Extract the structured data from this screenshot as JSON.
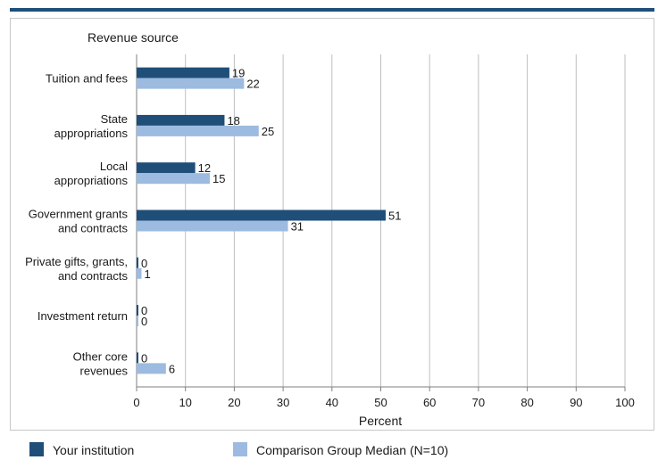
{
  "colors": {
    "top_rule": "#1f4e79",
    "series_1": "#1f4e79",
    "series_2": "#9dbbe0",
    "grid": "#bfbfbf",
    "frame": "#c8c8c8",
    "text": "#1a1a1a"
  },
  "legend": {
    "items": [
      {
        "label": "Your institution",
        "color": "#1f4e79"
      },
      {
        "label": "Comparison Group Median (N=10)",
        "color": "#9dbbe0"
      }
    ]
  },
  "chart_data": {
    "type": "bar",
    "orientation": "horizontal",
    "category_axis_title": "Revenue source",
    "value_axis_title": "Percent",
    "xlim": [
      0,
      100
    ],
    "x_ticks": [
      "0",
      "10",
      "20",
      "30",
      "40",
      "50",
      "60",
      "70",
      "80",
      "90",
      "100"
    ],
    "grid": true,
    "legend_position": "bottom",
    "categories": [
      [
        "Tuition and fees"
      ],
      [
        "State",
        "appropriations"
      ],
      [
        "Local",
        "appropriations"
      ],
      [
        "Government grants",
        "and contracts"
      ],
      [
        "Private gifts, grants,",
        "and contracts"
      ],
      [
        "Investment return"
      ],
      [
        "Other core",
        "revenues"
      ]
    ],
    "series": [
      {
        "name": "Your institution",
        "color": "#1f4e79",
        "values": [
          19,
          18,
          12,
          51,
          0,
          0,
          0
        ],
        "labels": [
          "19",
          "18",
          "12",
          "51",
          "0",
          "0",
          "0"
        ]
      },
      {
        "name": "Comparison Group Median (N=10)",
        "color": "#9dbbe0",
        "values": [
          22,
          25,
          15,
          31,
          1,
          0,
          6
        ],
        "labels": [
          "22",
          "25",
          "15",
          "31",
          "1",
          "0",
          "6"
        ]
      }
    ]
  }
}
